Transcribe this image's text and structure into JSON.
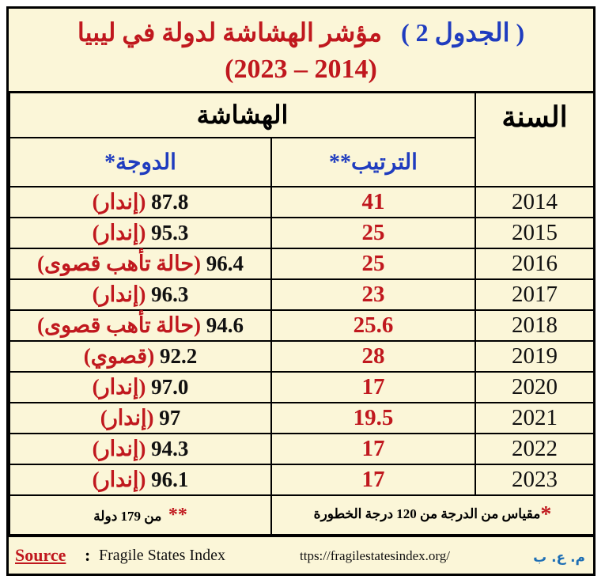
{
  "title": {
    "table_label": "( الجدول 2 )",
    "heading": "مؤشر الهشاشة لدولة في ليبيا",
    "period": "(2023 – 2014)"
  },
  "headers": {
    "year": "السنة",
    "fragility": "الهشاشة",
    "rank": "الترتيب**",
    "score": "الدوجة*"
  },
  "rows": [
    {
      "year": "2014",
      "rank": "41",
      "score": "87.8",
      "category": "(إندار)"
    },
    {
      "year": "2015",
      "rank": "25",
      "score": "95.3",
      "category": "(إندار)"
    },
    {
      "year": "2016",
      "rank": "25",
      "score": "96.4",
      "category": "(حالة تأهب قصوى)"
    },
    {
      "year": "2017",
      "rank": "23",
      "score": "96.3",
      "category": "(إندار)"
    },
    {
      "year": "2018",
      "rank": "25.6",
      "score": "94.6",
      "category": "(حالة تأهب قصوى)"
    },
    {
      "year": "2019",
      "rank": "28",
      "score": "92.2",
      "category": "(قصوي)"
    },
    {
      "year": "2020",
      "rank": "17",
      "score": "97.0",
      "category": "(إندار)"
    },
    {
      "year": "2021",
      "rank": "19.5",
      "score": "97",
      "category": "(إندار)"
    },
    {
      "year": "2022",
      "rank": "17",
      "score": "94.3",
      "category": "(إندار)"
    },
    {
      "year": "2023",
      "rank": "17",
      "score": "96.1",
      "category": "(إندار)"
    }
  ],
  "notes": {
    "score_note": "مقياس من الدرجة من 120 درجة الخطورة",
    "score_star": "*",
    "rank_note": "من 179 دولة",
    "rank_star": "**"
  },
  "source": {
    "label": "Source",
    "colon": ":",
    "name": "Fragile States Index",
    "url": "ttps://fragilestatesindex.org/",
    "initials": "م. ع. ب"
  },
  "colors": {
    "background": "#fbf6d8",
    "red": "#c0181e",
    "blue": "#1f3cbf",
    "initials_blue": "#1f6fb5"
  }
}
